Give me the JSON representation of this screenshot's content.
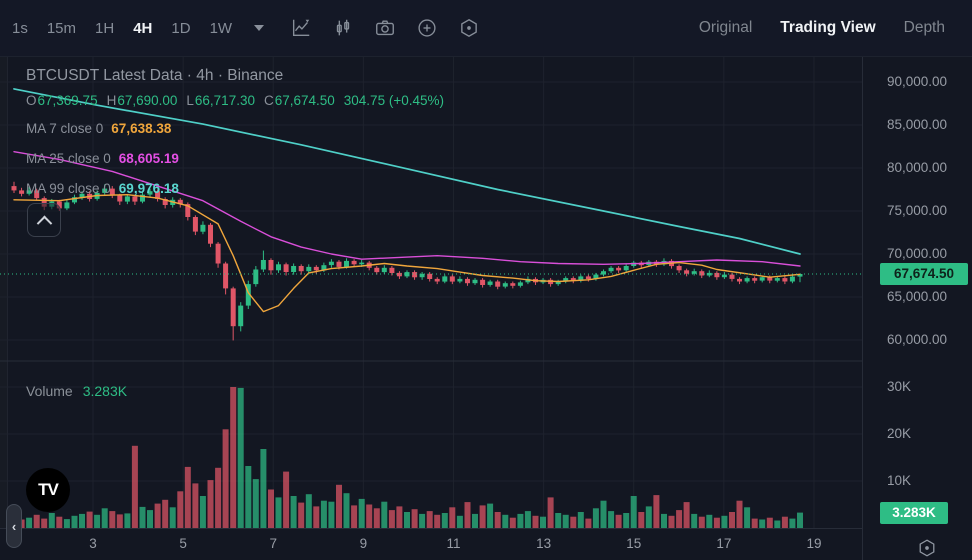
{
  "toolbar": {
    "timeframes": [
      {
        "label": "1s",
        "active": false
      },
      {
        "label": "15m",
        "active": false
      },
      {
        "label": "1H",
        "active": false
      },
      {
        "label": "4H",
        "active": true
      },
      {
        "label": "1D",
        "active": false
      },
      {
        "label": "1W",
        "active": false
      }
    ],
    "icons": [
      "caret-down-icon",
      "chart-type-icon",
      "compare-candles-icon",
      "camera-icon",
      "add-circle-icon",
      "settings-hexagon-icon"
    ],
    "view_tabs": [
      {
        "label": "Original",
        "active": false
      },
      {
        "label": "Trading View",
        "active": true
      },
      {
        "label": "Depth",
        "active": false
      }
    ]
  },
  "chart_header": {
    "title": "BTCUSDT Latest Data · 4h · Binance",
    "ohlc": {
      "o_label": "O",
      "o": "67,369.75",
      "h_label": "H",
      "h": "67,690.00",
      "l_label": "L",
      "l": "66,717.30",
      "c_label": "C",
      "c": "67,674.50",
      "change": "304.75 (+0.45%)"
    },
    "indicators": [
      {
        "label": "MA 7 close 0",
        "value": "67,638.38",
        "color": "#f0a63c"
      },
      {
        "label": "MA 25 close 0",
        "value": "68,605.19",
        "color": "#d94fd9"
      },
      {
        "label": "MA 99 close 0",
        "value": "69,976.18",
        "color": "#4fd0c8"
      }
    ]
  },
  "volume_header": {
    "label": "Volume",
    "value": "3.283K"
  },
  "price_axis": {
    "tick_labels": [
      "90,000.00",
      "85,000.00",
      "80,000.00",
      "75,000.00",
      "70,000.00",
      "65,000.00",
      "60,000.00"
    ],
    "badge": "67,674.50"
  },
  "volume_axis": {
    "tick_labels": [
      "30K",
      "20K",
      "10K"
    ],
    "badge": "3.283K"
  },
  "time_axis": {
    "tick_labels": [
      "3",
      "5",
      "7",
      "9",
      "11",
      "13",
      "15",
      "17",
      "19"
    ]
  },
  "colors": {
    "background": "#131722",
    "grid": "#1e222d",
    "separator": "#272c38",
    "up": "#2ebd85",
    "down": "#e05667",
    "badge": "#2ebd85",
    "ma7": "#f0a63c",
    "ma25": "#d94fd9",
    "ma99": "#4fd0c8",
    "last_price_line": "#2ebd85"
  },
  "chart_data": {
    "type": "candlestick+volume",
    "symbol": "BTCUSDT",
    "interval": "4h",
    "exchange": "Binance",
    "price_axis_ticks_k": [
      90,
      85,
      80,
      75,
      70,
      65,
      60
    ],
    "volume_axis_ticks_k": [
      30,
      20,
      10
    ],
    "time_ticks_days": [
      3,
      5,
      7,
      9,
      11,
      13,
      15,
      17,
      19
    ],
    "last_price_k": 67.6745,
    "last_volume_k": 3.283,
    "candles_ohlc_k": [
      [
        77.9,
        78.4,
        77.1,
        77.4
      ],
      [
        77.4,
        77.7,
        76.7,
        77.0
      ],
      [
        77.0,
        77.8,
        76.8,
        77.4
      ],
      [
        77.4,
        77.6,
        76.2,
        76.5
      ],
      [
        76.5,
        76.7,
        75.1,
        75.5
      ],
      [
        75.5,
        76.4,
        75.2,
        76.1
      ],
      [
        76.1,
        76.3,
        75.0,
        75.3
      ],
      [
        75.3,
        76.3,
        75.1,
        76.0
      ],
      [
        76.0,
        76.9,
        75.8,
        76.6
      ],
      [
        76.6,
        77.3,
        76.3,
        77.0
      ],
      [
        77.0,
        77.3,
        76.1,
        76.4
      ],
      [
        76.4,
        77.4,
        76.2,
        77.1
      ],
      [
        77.1,
        78.1,
        76.9,
        77.6
      ],
      [
        77.6,
        77.9,
        76.5,
        76.8
      ],
      [
        76.8,
        77.0,
        75.7,
        76.1
      ],
      [
        76.1,
        76.9,
        75.8,
        76.7
      ],
      [
        76.7,
        76.9,
        75.7,
        76.1
      ],
      [
        76.1,
        77.2,
        75.9,
        76.9
      ],
      [
        76.9,
        77.6,
        76.6,
        77.3
      ],
      [
        77.3,
        77.5,
        76.1,
        76.4
      ],
      [
        76.4,
        76.6,
        75.3,
        75.7
      ],
      [
        75.7,
        76.6,
        75.4,
        76.3
      ],
      [
        76.3,
        76.5,
        75.4,
        75.8
      ],
      [
        75.8,
        76.0,
        73.9,
        74.3
      ],
      [
        74.3,
        74.5,
        72.2,
        72.6
      ],
      [
        72.6,
        73.8,
        72.3,
        73.4
      ],
      [
        73.4,
        73.6,
        70.8,
        71.2
      ],
      [
        71.2,
        71.4,
        68.4,
        68.9
      ],
      [
        68.9,
        69.1,
        65.3,
        66.0
      ],
      [
        66.0,
        66.2,
        59.95,
        61.6
      ],
      [
        61.6,
        64.4,
        61.0,
        64.0
      ],
      [
        64.0,
        66.9,
        63.6,
        66.5
      ],
      [
        66.5,
        68.6,
        66.2,
        68.2
      ],
      [
        68.2,
        70.4,
        67.9,
        69.3
      ],
      [
        69.3,
        69.5,
        67.6,
        68.1
      ],
      [
        68.1,
        69.1,
        67.8,
        68.8
      ],
      [
        68.8,
        69.0,
        67.5,
        67.9
      ],
      [
        67.9,
        68.9,
        67.6,
        68.6
      ],
      [
        68.6,
        68.8,
        67.6,
        68.0
      ],
      [
        68.0,
        68.8,
        67.7,
        68.5
      ],
      [
        68.5,
        68.7,
        67.7,
        68.1
      ],
      [
        68.1,
        69.0,
        67.9,
        68.7
      ],
      [
        68.7,
        69.4,
        68.4,
        69.1
      ],
      [
        69.1,
        69.3,
        68.2,
        68.5
      ],
      [
        68.5,
        69.5,
        68.3,
        69.2
      ],
      [
        69.2,
        69.4,
        68.5,
        68.8
      ],
      [
        68.8,
        69.3,
        68.5,
        69.0
      ],
      [
        69.0,
        69.2,
        68.1,
        68.4
      ],
      [
        68.4,
        68.6,
        67.6,
        67.9
      ],
      [
        67.9,
        68.7,
        67.7,
        68.4
      ],
      [
        68.4,
        68.6,
        67.5,
        67.8
      ],
      [
        67.8,
        68.0,
        67.1,
        67.4
      ],
      [
        67.4,
        68.1,
        67.2,
        67.9
      ],
      [
        67.9,
        68.1,
        67.0,
        67.3
      ],
      [
        67.3,
        67.9,
        67.0,
        67.7
      ],
      [
        67.7,
        67.9,
        66.8,
        67.1
      ],
      [
        67.1,
        67.3,
        66.5,
        66.8
      ],
      [
        66.8,
        67.6,
        66.6,
        67.4
      ],
      [
        67.4,
        67.6,
        66.5,
        66.8
      ],
      [
        66.8,
        67.4,
        66.6,
        67.1
      ],
      [
        67.1,
        67.3,
        66.3,
        66.6
      ],
      [
        66.6,
        67.2,
        66.4,
        67.0
      ],
      [
        67.0,
        67.2,
        66.1,
        66.4
      ],
      [
        66.4,
        67.0,
        66.2,
        66.8
      ],
      [
        66.8,
        67.0,
        65.9,
        66.2
      ],
      [
        66.2,
        66.8,
        66.0,
        66.6
      ],
      [
        66.6,
        66.8,
        66.0,
        66.3
      ],
      [
        66.3,
        66.9,
        66.1,
        66.7
      ],
      [
        66.7,
        67.4,
        66.5,
        67.1
      ],
      [
        67.1,
        67.3,
        66.4,
        66.7
      ],
      [
        66.7,
        67.2,
        66.5,
        67.0
      ],
      [
        67.0,
        67.2,
        66.2,
        66.5
      ],
      [
        66.5,
        67.0,
        66.3,
        66.8
      ],
      [
        66.8,
        67.4,
        66.6,
        67.2
      ],
      [
        67.2,
        67.4,
        66.6,
        66.9
      ],
      [
        66.9,
        67.6,
        66.7,
        67.4
      ],
      [
        67.4,
        67.6,
        66.8,
        67.1
      ],
      [
        67.1,
        67.8,
        66.9,
        67.6
      ],
      [
        67.6,
        68.2,
        67.4,
        68.0
      ],
      [
        68.0,
        68.6,
        67.8,
        68.4
      ],
      [
        68.4,
        68.6,
        67.8,
        68.1
      ],
      [
        68.1,
        68.8,
        67.9,
        68.6
      ],
      [
        68.6,
        69.2,
        68.4,
        69.0
      ],
      [
        69.0,
        69.2,
        68.4,
        68.7
      ],
      [
        68.7,
        69.3,
        68.5,
        69.1
      ],
      [
        69.1,
        69.3,
        68.5,
        68.8
      ],
      [
        68.8,
        69.5,
        68.6,
        69.2
      ],
      [
        69.2,
        69.4,
        68.3,
        68.6
      ],
      [
        68.6,
        68.8,
        67.8,
        68.1
      ],
      [
        68.1,
        68.3,
        67.4,
        67.7
      ],
      [
        67.7,
        68.3,
        67.5,
        68.0
      ],
      [
        68.0,
        68.2,
        67.2,
        67.5
      ],
      [
        67.5,
        68.1,
        67.3,
        67.8
      ],
      [
        67.8,
        68.0,
        67.0,
        67.3
      ],
      [
        67.3,
        67.9,
        67.1,
        67.6
      ],
      [
        67.6,
        67.8,
        66.8,
        67.1
      ],
      [
        67.1,
        67.3,
        66.5,
        66.8
      ],
      [
        66.8,
        67.4,
        66.6,
        67.2
      ],
      [
        67.2,
        67.4,
        66.6,
        66.9
      ],
      [
        66.9,
        67.5,
        66.7,
        67.3
      ],
      [
        67.3,
        67.5,
        66.6,
        66.9
      ],
      [
        66.9,
        67.4,
        66.7,
        67.2
      ],
      [
        67.2,
        67.4,
        66.5,
        66.8
      ],
      [
        66.8,
        67.5,
        66.6,
        67.37
      ],
      [
        67.37,
        67.69,
        66.72,
        67.67
      ]
    ],
    "volumes_k": [
      2.5,
      1.8,
      2.2,
      2.8,
      2.0,
      3.2,
      2.4,
      1.9,
      2.6,
      3.0,
      3.5,
      2.8,
      4.2,
      3.6,
      2.9,
      3.1,
      17.5,
      4.5,
      3.8,
      5.2,
      6.0,
      4.4,
      7.8,
      13.0,
      9.5,
      6.8,
      10.2,
      12.8,
      21.0,
      30.0,
      29.8,
      13.2,
      10.4,
      16.8,
      8.2,
      6.5,
      12.0,
      6.8,
      5.4,
      7.2,
      4.6,
      5.8,
      5.6,
      9.2,
      7.4,
      4.8,
      6.2,
      5.0,
      4.2,
      5.6,
      3.8,
      4.6,
      3.4,
      4.0,
      3.0,
      3.6,
      2.8,
      3.2,
      4.4,
      2.6,
      5.5,
      3.0,
      4.8,
      5.2,
      3.4,
      2.8,
      2.2,
      3.0,
      3.6,
      2.6,
      2.4,
      6.5,
      3.2,
      2.8,
      2.4,
      3.4,
      2.0,
      4.2,
      5.8,
      3.6,
      2.8,
      3.2,
      6.8,
      3.4,
      4.6,
      7.0,
      3.0,
      2.6,
      3.8,
      5.5,
      3.0,
      2.4,
      2.8,
      2.2,
      2.6,
      3.4,
      5.8,
      4.4,
      2.0,
      1.8,
      2.2,
      1.6,
      2.4,
      2.0,
      3.283
    ],
    "ma7_points_idx_k": [
      [
        0,
        76.3
      ],
      [
        6,
        76.2
      ],
      [
        11,
        76.8
      ],
      [
        15,
        76.9
      ],
      [
        19,
        76.5
      ],
      [
        23,
        75.6
      ],
      [
        27,
        73.5
      ],
      [
        29,
        69.8
      ],
      [
        31,
        65.5
      ],
      [
        33,
        63.3
      ],
      [
        35,
        64.0
      ],
      [
        37,
        66.0
      ],
      [
        39,
        67.8
      ],
      [
        42,
        68.3
      ],
      [
        46,
        68.6
      ],
      [
        49,
        68.9
      ],
      [
        52,
        68.6
      ],
      [
        56,
        68.3
      ],
      [
        59,
        67.9
      ],
      [
        62,
        67.5
      ],
      [
        66,
        67.2
      ],
      [
        69,
        66.9
      ],
      [
        72,
        66.8
      ],
      [
        76,
        67.0
      ],
      [
        79,
        67.4
      ],
      [
        82,
        68.1
      ],
      [
        85,
        68.8
      ],
      [
        88,
        69.0
      ],
      [
        91,
        68.7
      ],
      [
        93,
        68.2
      ],
      [
        97,
        67.7
      ],
      [
        100,
        67.3
      ],
      [
        104,
        67.64
      ]
    ],
    "ma25_points_idx_k": [
      [
        0,
        81.9
      ],
      [
        6,
        81.0
      ],
      [
        13,
        79.6
      ],
      [
        19,
        77.9
      ],
      [
        25,
        76.2
      ],
      [
        30,
        73.8
      ],
      [
        34,
        72.0
      ],
      [
        38,
        70.8
      ],
      [
        42,
        70.0
      ],
      [
        46,
        69.4
      ],
      [
        51,
        69.6
      ],
      [
        56,
        69.8
      ],
      [
        62,
        69.5
      ],
      [
        67,
        69.1
      ],
      [
        72,
        68.9
      ],
      [
        78,
        68.8
      ],
      [
        83,
        68.9
      ],
      [
        88,
        69.1
      ],
      [
        93,
        69.3
      ],
      [
        99,
        69.1
      ],
      [
        104,
        68.61
      ]
    ],
    "ma99_points_idx_k": [
      [
        0,
        89.2
      ],
      [
        11,
        87.3
      ],
      [
        25,
        85.1
      ],
      [
        38,
        82.7
      ],
      [
        51,
        80.1
      ],
      [
        64,
        77.5
      ],
      [
        78,
        75.0
      ],
      [
        88,
        73.2
      ],
      [
        96,
        71.8
      ],
      [
        104,
        70.0
      ]
    ]
  }
}
